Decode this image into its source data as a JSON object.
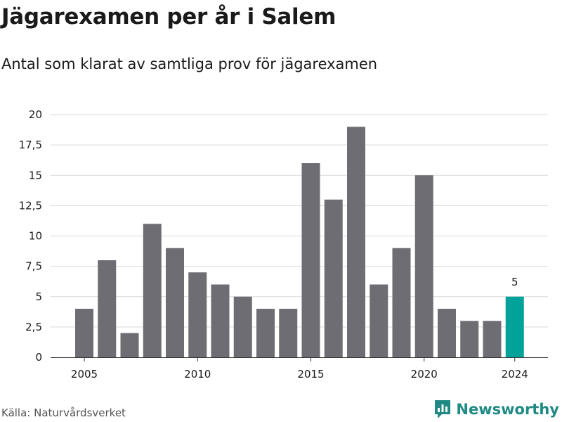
{
  "header": {
    "title": "Jägarexamen per år i Salem",
    "subtitle": "Antal som klarat av samtliga prov för jägarexamen"
  },
  "footer": {
    "source": "Källa: Naturvårdsverket",
    "brand": "Newsworthy",
    "brand_icon": "newsworthy-logo-icon"
  },
  "colors": {
    "bar": "#6e6d73",
    "highlight": "#00a29a",
    "grid": "#d9d9d9",
    "brand": "#1f8a84"
  },
  "chart_data": {
    "type": "bar",
    "x": [
      2005,
      2006,
      2007,
      2008,
      2009,
      2010,
      2011,
      2012,
      2013,
      2014,
      2015,
      2016,
      2017,
      2018,
      2019,
      2020,
      2021,
      2022,
      2023,
      2024
    ],
    "values": [
      4,
      8,
      2,
      11,
      9,
      7,
      6,
      5,
      4,
      4,
      16,
      13,
      19,
      6,
      9,
      15,
      4,
      3,
      3,
      5
    ],
    "x_ticks": [
      2005,
      2010,
      2015,
      2020,
      2024
    ],
    "x_tick_labels": [
      "2005",
      "2010",
      "2015",
      "2020",
      "2024"
    ],
    "y_ticks": [
      0,
      2.5,
      5,
      7.5,
      10,
      12.5,
      15,
      17.5,
      20
    ],
    "y_tick_labels": [
      "0",
      "2,5",
      "5",
      "7,5",
      "10",
      "12,5",
      "15",
      "17,5",
      "20"
    ],
    "ylim": [
      0,
      20
    ],
    "grid": true,
    "highlight_index": 19,
    "data_labels": [
      {
        "index": 19,
        "text": "5"
      }
    ],
    "xlabel": "",
    "ylabel": ""
  }
}
